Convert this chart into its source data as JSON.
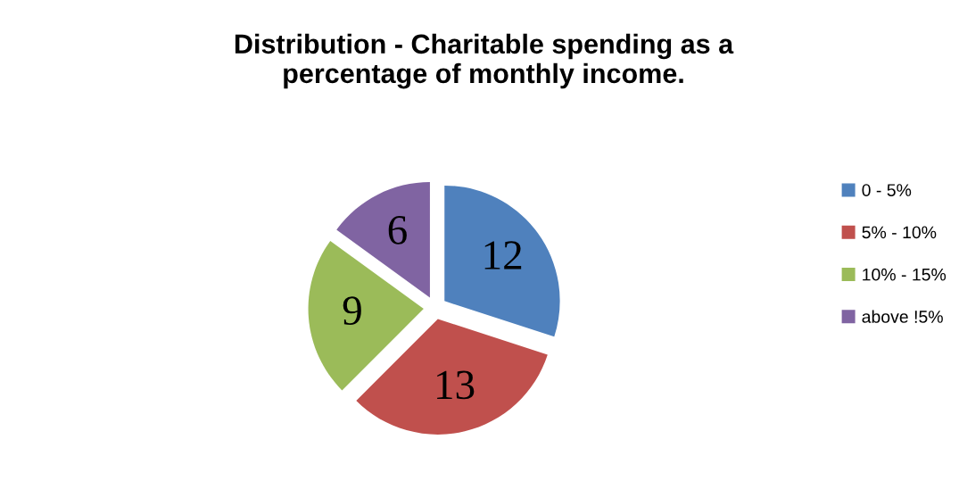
{
  "chart_data": {
    "type": "pie",
    "title": "Distribution - Charitable spending as a\npercentage of monthly income.",
    "categories": [
      "0 - 5%",
      "5% - 10%",
      "10% - 15%",
      "above !5%"
    ],
    "values": [
      12,
      13,
      9,
      6
    ],
    "colors": [
      "#4f81bd",
      "#c0504d",
      "#9bbb59",
      "#8064a2"
    ],
    "data_labels": true,
    "legend": "right"
  }
}
